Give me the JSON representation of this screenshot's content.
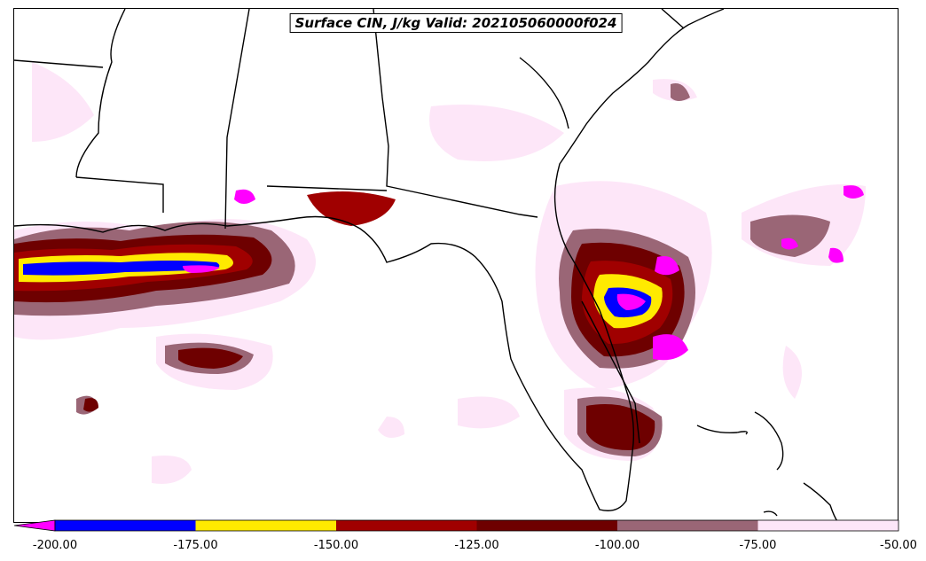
{
  "title": "Surface CIN, J/kg Valid: 202105060000f024",
  "legend": {
    "extend": "min",
    "min_color": "#ff00ff",
    "levels": [
      "-200.00",
      "-175.00",
      "-150.00",
      "-125.00",
      "-100.00",
      "-75.00",
      "-50.00"
    ],
    "colors": [
      "#0000ff",
      "#ffea00",
      "#a00000",
      "#6e0000",
      "#9a6676",
      "#fde6f8"
    ]
  },
  "palette": {
    "lightest": "#fde6f8",
    "mauve": "#9a6676",
    "dark_red": "#6e0000",
    "red": "#a00000",
    "yellow": "#ffea00",
    "blue": "#0000ff",
    "magenta": "#ff00ff",
    "coastline": "#000000"
  }
}
